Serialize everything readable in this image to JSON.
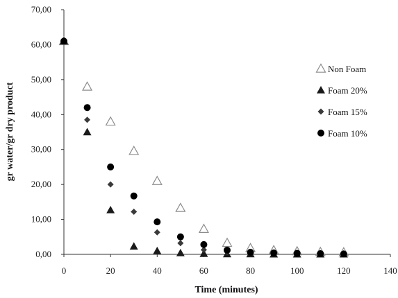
{
  "chart_data": {
    "type": "scatter",
    "title": "",
    "xlabel": "Time (minutes)",
    "ylabel": "gr water/gr dry product",
    "xlim": [
      0,
      140
    ],
    "ylim": [
      0,
      70
    ],
    "x_ticks": [
      "0",
      "20",
      "40",
      "60",
      "80",
      "100",
      "120",
      "140"
    ],
    "y_ticks": [
      "0,00",
      "10,00",
      "20,00",
      "30,00",
      "40,00",
      "50,00",
      "60,00",
      "70,00"
    ],
    "grid": false,
    "legend_position": "right",
    "series": [
      {
        "name": "Non Foam",
        "marker": "open-triangle",
        "color": "#8c8c8c",
        "points": [
          [
            0,
            61.0
          ],
          [
            10,
            48.0
          ],
          [
            20,
            38.0
          ],
          [
            30,
            29.6
          ],
          [
            40,
            21.0
          ],
          [
            50,
            13.3
          ],
          [
            60,
            7.3
          ],
          [
            70,
            3.3
          ],
          [
            80,
            1.8
          ],
          [
            90,
            1.2
          ],
          [
            100,
            0.9
          ],
          [
            110,
            0.7
          ],
          [
            120,
            0.6
          ]
        ]
      },
      {
        "name": "Foam 20%",
        "marker": "filled-triangle",
        "color": "#1a1a1a",
        "points": [
          [
            0,
            61.0
          ],
          [
            10,
            35.0
          ],
          [
            20,
            12.7
          ],
          [
            30,
            2.3
          ],
          [
            40,
            1.0
          ],
          [
            50,
            0.4
          ],
          [
            60,
            0.2
          ],
          [
            70,
            0.1
          ],
          [
            80,
            0.1
          ],
          [
            90,
            0.05
          ],
          [
            100,
            0.05
          ],
          [
            110,
            0.05
          ],
          [
            120,
            0.05
          ]
        ]
      },
      {
        "name": "Foam 15%",
        "marker": "filled-diamond",
        "color": "#3a3a3a",
        "points": [
          [
            0,
            61.0
          ],
          [
            10,
            38.5
          ],
          [
            20,
            20.0
          ],
          [
            30,
            12.2
          ],
          [
            40,
            6.3
          ],
          [
            50,
            3.2
          ],
          [
            60,
            1.3
          ],
          [
            70,
            0.7
          ],
          [
            80,
            0.4
          ],
          [
            90,
            0.3
          ],
          [
            100,
            0.2
          ],
          [
            110,
            0.2
          ],
          [
            120,
            0.1
          ]
        ]
      },
      {
        "name": "Foam 10%",
        "marker": "filled-circle",
        "color": "#000000",
        "points": [
          [
            0,
            61.0
          ],
          [
            10,
            42.0
          ],
          [
            20,
            25.0
          ],
          [
            30,
            16.7
          ],
          [
            40,
            9.3
          ],
          [
            50,
            5.0
          ],
          [
            60,
            2.8
          ],
          [
            70,
            1.2
          ],
          [
            80,
            0.6
          ],
          [
            90,
            0.4
          ],
          [
            100,
            0.3
          ],
          [
            110,
            0.2
          ],
          [
            120,
            0.1
          ]
        ]
      }
    ]
  }
}
